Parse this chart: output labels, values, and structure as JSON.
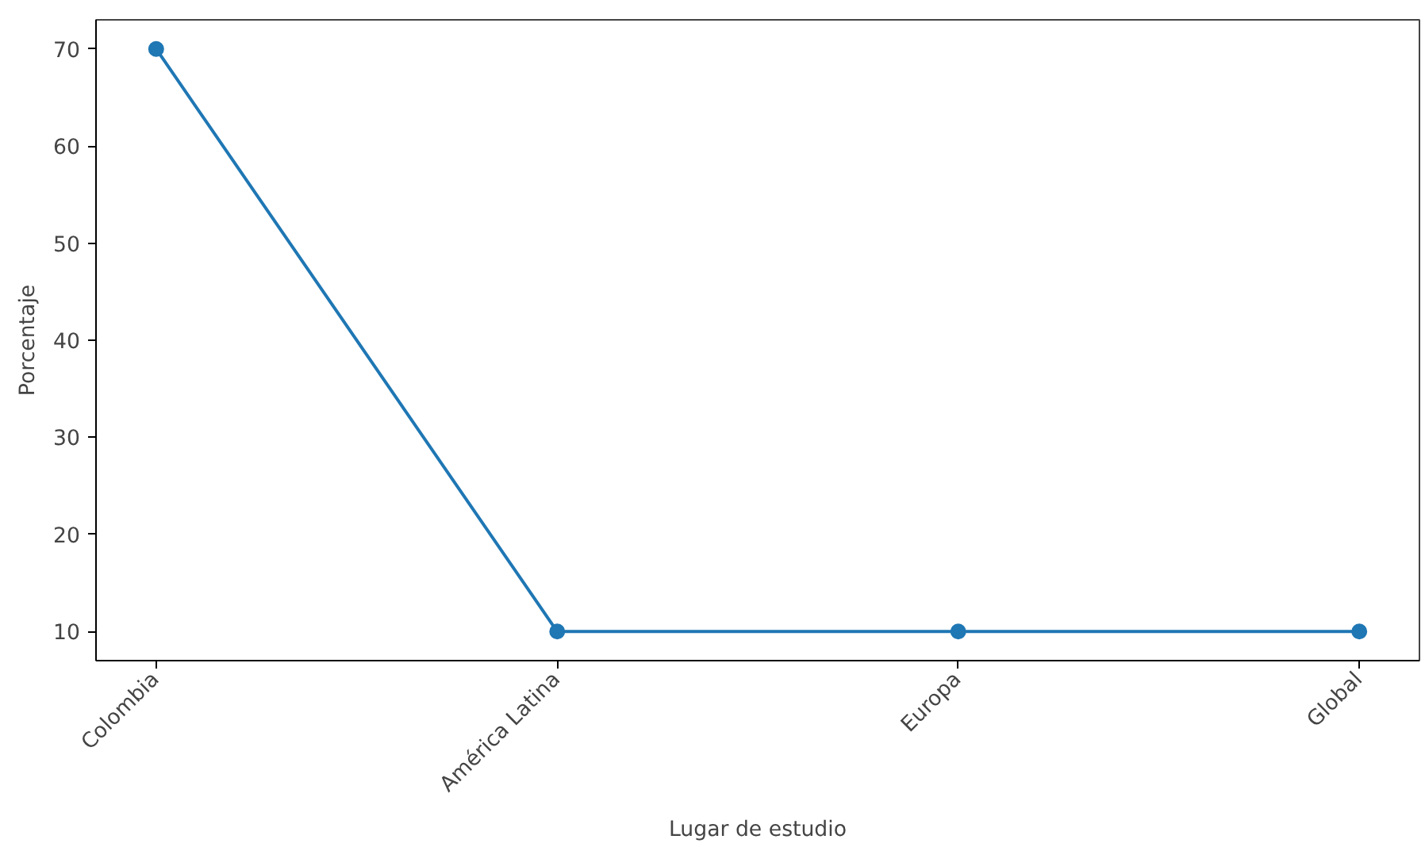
{
  "chart_data": {
    "type": "line",
    "xlabel": "Lugar de estudio",
    "ylabel": "Porcentaje",
    "categories": [
      "Colombia",
      "América Latina",
      "Europa",
      "Global"
    ],
    "series": [
      {
        "color": "#1f77b4",
        "values": [
          70,
          10,
          10,
          10
        ]
      }
    ],
    "ylim": [
      7,
      73
    ],
    "yticks": [
      10,
      20,
      30,
      40,
      50,
      60,
      70
    ],
    "marker": "circle",
    "line_style": "solid",
    "grid": false
  }
}
